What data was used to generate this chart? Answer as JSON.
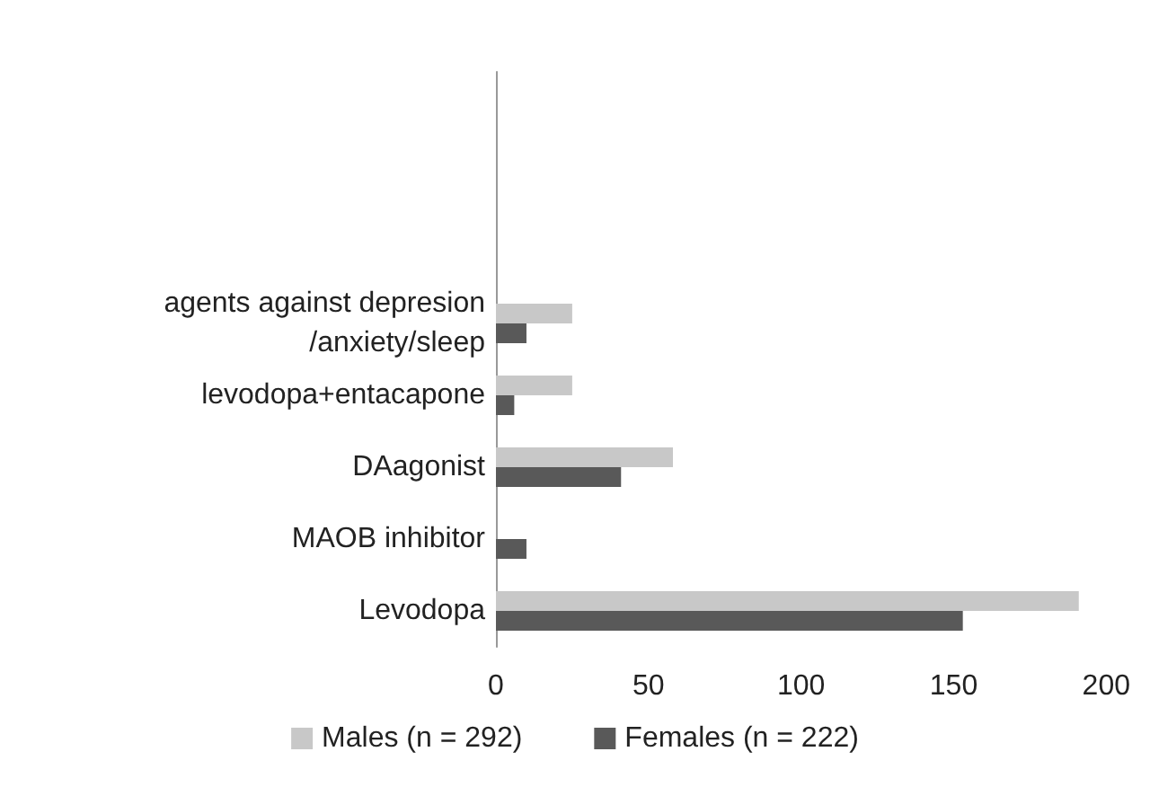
{
  "chart_data": {
    "type": "bar",
    "orientation": "horizontal",
    "categories": [
      null,
      null,
      null,
      "agents against depresion\n/anxiety/sleep",
      "levodopa+entacapone",
      "DAagonist",
      "MAOB inhibitor",
      "Levodopa"
    ],
    "series": [
      {
        "name": "Males (n = 292)",
        "color": "#c8c8c8",
        "values": [
          null,
          null,
          null,
          25,
          25,
          58,
          0,
          191
        ]
      },
      {
        "name": "Females (n = 222)",
        "color": "#595959",
        "values": [
          null,
          null,
          null,
          10,
          6,
          41,
          10,
          153
        ]
      }
    ],
    "xlim": [
      0,
      200
    ],
    "xticks": [
      0,
      50,
      100,
      150,
      200
    ],
    "grid": false,
    "legend": "bottom"
  }
}
